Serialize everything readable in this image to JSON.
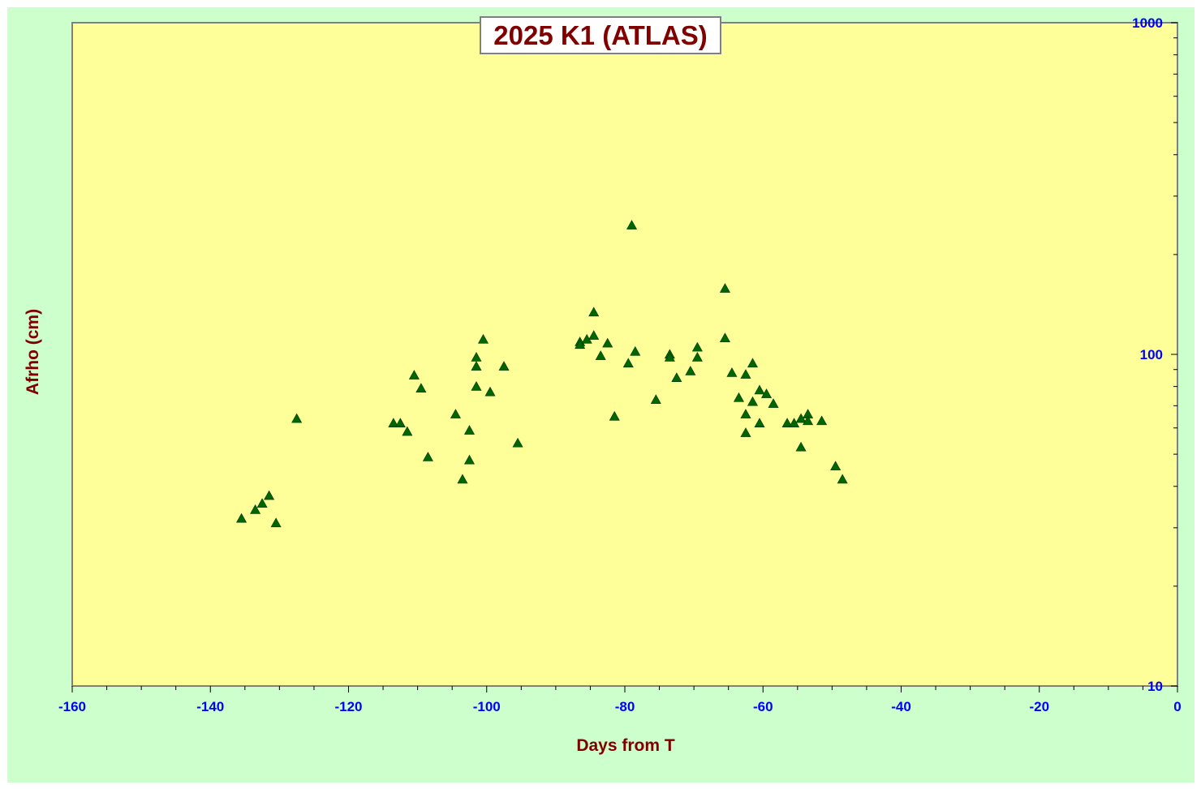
{
  "chart_data": {
    "type": "scatter",
    "title": "2025 K1 (ATLAS)",
    "xlabel": "Days from T",
    "ylabel": "Afrho (cm)",
    "xlim": [
      -160,
      0
    ],
    "ylim": [
      10,
      1000
    ],
    "y_scale": "log",
    "x_ticks": [
      -160,
      -140,
      -120,
      -100,
      -80,
      -60,
      -40,
      -20,
      0
    ],
    "x_tick_labels": [
      "-160",
      "-140",
      "-120",
      "-100",
      "-80",
      "-60",
      "-40",
      "-20",
      "0"
    ],
    "y_ticks": [
      10,
      100,
      1000
    ],
    "y_tick_labels": [
      "10",
      "100",
      "1000"
    ],
    "y_axis_side": "right",
    "grid": false,
    "legend": "none",
    "colors": {
      "outer_background": "#ccffcc",
      "plot_background": "#ffff99",
      "marker": "#006600",
      "title_text": "#800000",
      "axis_label_text": "#800000",
      "tick_label_text": "#0000ff"
    },
    "marker_shape": "triangle",
    "series": [
      {
        "points": [
          [
            -135.5,
            32
          ],
          [
            -133.5,
            34
          ],
          [
            -132.5,
            35.5
          ],
          [
            -131.5,
            37.5
          ],
          [
            -130.5,
            31
          ],
          [
            -127.5,
            64
          ],
          [
            -113.5,
            62
          ],
          [
            -112.5,
            62
          ],
          [
            -111.5,
            58.5
          ],
          [
            -110.5,
            86.5
          ],
          [
            -109.5,
            79
          ],
          [
            -108.5,
            49
          ],
          [
            -104.5,
            66
          ],
          [
            -103.5,
            42
          ],
          [
            -102.5,
            59
          ],
          [
            -102.5,
            48
          ],
          [
            -101.5,
            98
          ],
          [
            -101.5,
            92
          ],
          [
            -101.5,
            80
          ],
          [
            -100.5,
            111
          ],
          [
            -99.5,
            77
          ],
          [
            -97.5,
            92
          ],
          [
            -95.5,
            54
          ],
          [
            -86.5,
            109
          ],
          [
            -86.5,
            107
          ],
          [
            -85.5,
            111
          ],
          [
            -84.5,
            134
          ],
          [
            -84.5,
            114
          ],
          [
            -83.5,
            99
          ],
          [
            -82.5,
            108
          ],
          [
            -81.5,
            65
          ],
          [
            -79.5,
            94
          ],
          [
            -79,
            245
          ],
          [
            -78.5,
            102
          ],
          [
            -75.5,
            73
          ],
          [
            -73.5,
            100
          ],
          [
            -73.5,
            98
          ],
          [
            -72.5,
            85
          ],
          [
            -70.5,
            89
          ],
          [
            -69.5,
            105
          ],
          [
            -69.5,
            98
          ],
          [
            -65.5,
            158
          ],
          [
            -65.5,
            112
          ],
          [
            -64.5,
            88
          ],
          [
            -63.5,
            74
          ],
          [
            -62.5,
            87
          ],
          [
            -62.5,
            66
          ],
          [
            -62.5,
            58
          ],
          [
            -61.5,
            94
          ],
          [
            -61.5,
            72
          ],
          [
            -60.5,
            78
          ],
          [
            -60.5,
            62
          ],
          [
            -59.5,
            76
          ],
          [
            -58.5,
            71
          ],
          [
            -56.5,
            62
          ],
          [
            -55.5,
            62
          ],
          [
            -54.5,
            64
          ],
          [
            -54.5,
            52.5
          ],
          [
            -53.5,
            66
          ],
          [
            -53.5,
            63
          ],
          [
            -51.5,
            63
          ],
          [
            -49.5,
            46
          ],
          [
            -48.5,
            42
          ]
        ]
      }
    ]
  }
}
